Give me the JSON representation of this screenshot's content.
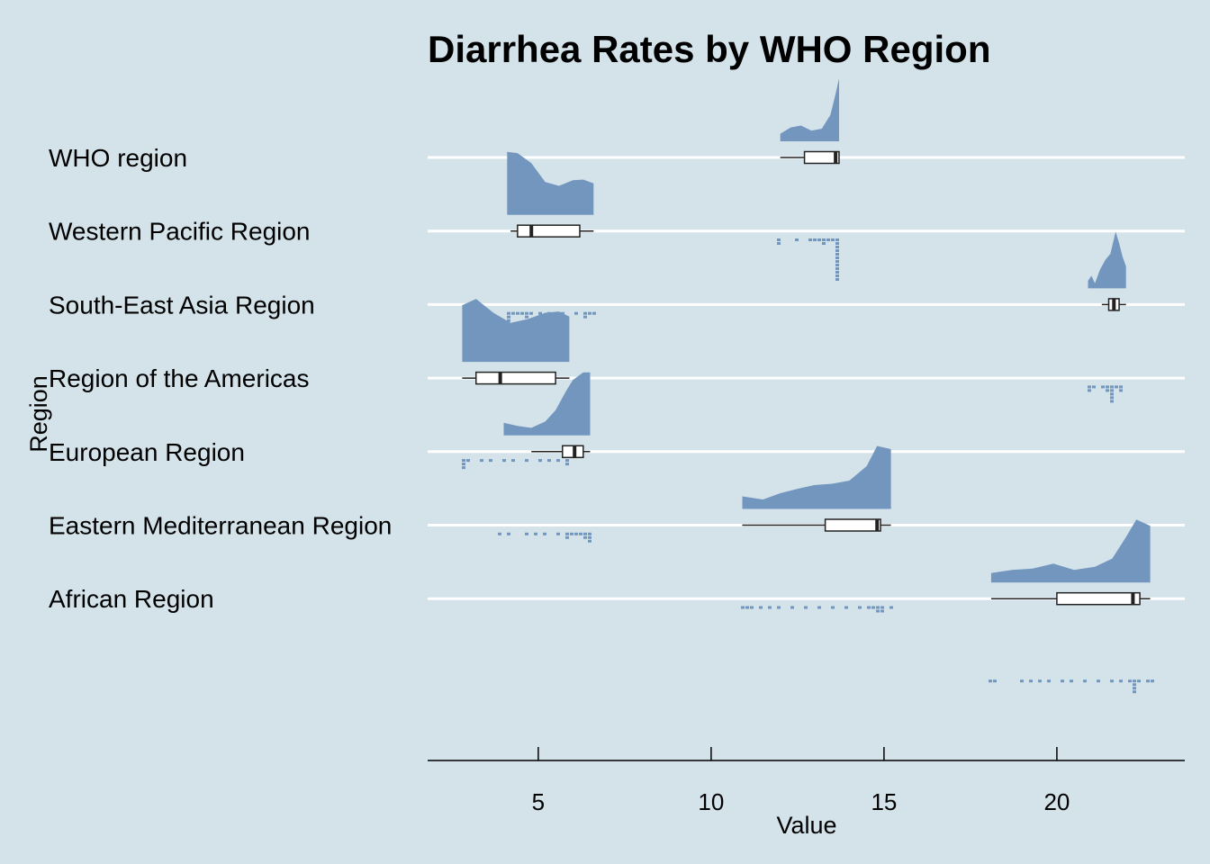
{
  "chart_data": {
    "type": "raincloud",
    "title": "Diarrhea Rates by WHO Region",
    "xlabel": "Value",
    "ylabel": "Region",
    "xlim": [
      1.8,
      23.7
    ],
    "xticks": [
      5,
      10,
      15,
      20
    ],
    "colors": {
      "background": "#d4e3ea",
      "fill": "#7396be",
      "gridline": "#ffffff",
      "box_stroke": "#222222"
    },
    "categories": [
      "WHO region",
      "Western Pacific Region",
      "South-East Asia Region",
      "Region of the Americas",
      "European Region",
      "Eastern Mediterranean Region",
      "African Region"
    ],
    "series": [
      {
        "category": "WHO region",
        "box": {
          "min": 12.0,
          "q1": 12.7,
          "median": 13.6,
          "q3": 13.7,
          "max": 13.7
        },
        "density": {
          "x": [
            12.0,
            12.3,
            12.6,
            12.9,
            13.2,
            13.45,
            13.6,
            13.7
          ],
          "y": [
            0.12,
            0.22,
            0.25,
            0.17,
            0.2,
            0.42,
            0.75,
            1.0
          ]
        },
        "points": [
          12.0,
          12.0,
          12.5,
          12.9,
          13.0,
          13.1,
          13.2,
          13.3,
          13.4,
          13.5,
          13.6,
          13.7,
          13.7,
          13.7,
          13.7,
          13.7,
          13.7,
          13.7,
          13.7,
          13.7,
          13.7,
          13.7
        ]
      },
      {
        "category": "Western Pacific Region",
        "box": {
          "min": 4.2,
          "q1": 4.4,
          "median": 4.8,
          "q3": 6.2,
          "max": 6.6
        },
        "density": {
          "x": [
            4.1,
            4.4,
            4.8,
            5.2,
            5.6,
            6.0,
            6.3,
            6.6
          ],
          "y": [
            1.0,
            0.98,
            0.82,
            0.52,
            0.46,
            0.55,
            0.56,
            0.5
          ]
        },
        "points": [
          4.1,
          4.2,
          4.2,
          4.2,
          4.2,
          4.2,
          4.3,
          4.4,
          4.5,
          4.6,
          4.7,
          4.8,
          5.0,
          5.3,
          5.7,
          6.1,
          6.3,
          6.4,
          6.5,
          6.6
        ]
      },
      {
        "category": "South-East Asia Region",
        "box": {
          "min": 21.3,
          "q1": 21.5,
          "median": 21.65,
          "q3": 21.8,
          "max": 22.0
        },
        "density": {
          "x": [
            20.9,
            21.0,
            21.1,
            21.25,
            21.4,
            21.55,
            21.7,
            21.8,
            21.9,
            22.0
          ],
          "y": [
            0.12,
            0.2,
            0.08,
            0.3,
            0.45,
            0.55,
            0.9,
            0.72,
            0.5,
            0.35
          ]
        },
        "points": [
          20.9,
          20.9,
          21.1,
          21.3,
          21.4,
          21.5,
          21.6,
          21.6,
          21.6,
          21.6,
          21.6,
          21.7,
          21.8,
          21.9
        ]
      },
      {
        "category": "Region of the Americas",
        "box": {
          "min": 2.8,
          "q1": 3.2,
          "median": 3.9,
          "q3": 5.5,
          "max": 5.9
        },
        "density": {
          "x": [
            2.8,
            3.2,
            3.7,
            4.2,
            4.7,
            5.2,
            5.6,
            5.9
          ],
          "y": [
            0.9,
            1.0,
            0.78,
            0.62,
            0.68,
            0.78,
            0.8,
            0.72
          ]
        },
        "points": [
          2.8,
          2.9,
          2.9,
          3.0,
          3.3,
          3.6,
          4.0,
          4.3,
          4.7,
          5.0,
          5.3,
          5.6,
          5.8,
          5.8
        ]
      },
      {
        "category": "European Region",
        "box": {
          "min": 4.8,
          "q1": 5.7,
          "median": 6.05,
          "q3": 6.3,
          "max": 6.5
        },
        "density": {
          "x": [
            4.0,
            4.4,
            4.8,
            5.2,
            5.5,
            5.8,
            6.0,
            6.3,
            6.5
          ],
          "y": [
            0.2,
            0.15,
            0.12,
            0.22,
            0.4,
            0.7,
            0.88,
            1.0,
            1.0
          ]
        },
        "points": [
          3.9,
          4.2,
          4.6,
          4.9,
          5.2,
          5.6,
          5.8,
          5.9,
          6.0,
          6.1,
          6.2,
          6.3,
          6.4,
          6.5,
          6.5,
          6.5
        ]
      },
      {
        "category": "Eastern Mediterranean Region",
        "box": {
          "min": 10.9,
          "q1": 13.3,
          "median": 14.8,
          "q3": 14.9,
          "max": 15.2
        },
        "density": {
          "x": [
            10.9,
            11.5,
            12.0,
            12.5,
            13.0,
            13.5,
            14.0,
            14.5,
            14.8,
            15.2
          ],
          "y": [
            0.2,
            0.15,
            0.25,
            0.32,
            0.38,
            0.4,
            0.45,
            0.68,
            1.0,
            0.95
          ]
        },
        "points": [
          10.9,
          11.0,
          11.2,
          11.4,
          11.7,
          12.0,
          12.4,
          12.7,
          13.1,
          13.5,
          13.9,
          14.3,
          14.6,
          14.7,
          14.8,
          14.8,
          14.9,
          15.0,
          15.2
        ]
      },
      {
        "category": "African Region",
        "box": {
          "min": 18.1,
          "q1": 20.0,
          "median": 22.2,
          "q3": 22.4,
          "max": 22.7
        },
        "density": {
          "x": [
            18.1,
            18.7,
            19.3,
            19.9,
            20.5,
            21.1,
            21.6,
            22.0,
            22.3,
            22.7
          ],
          "y": [
            0.15,
            0.2,
            0.22,
            0.3,
            0.2,
            0.25,
            0.38,
            0.72,
            1.0,
            0.9
          ]
        },
        "points": [
          18.1,
          18.2,
          19.0,
          19.2,
          19.5,
          19.8,
          20.1,
          20.4,
          20.8,
          21.2,
          21.6,
          21.9,
          22.1,
          22.2,
          22.2,
          22.2,
          22.3,
          22.4,
          22.6,
          22.7
        ]
      }
    ]
  }
}
